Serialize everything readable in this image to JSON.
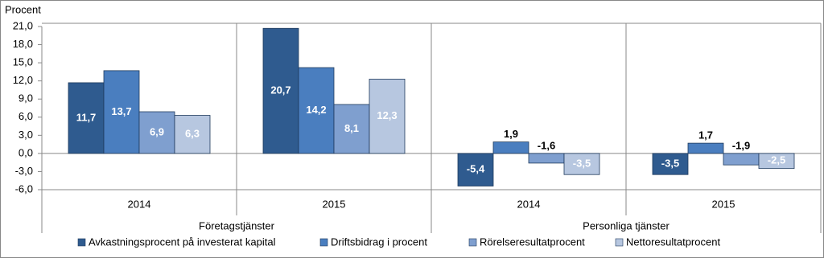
{
  "chart_data": {
    "type": "bar",
    "y_label": "Procent",
    "groups": [
      {
        "name": "Företagstjänster",
        "categories": [
          "2014",
          "2015"
        ]
      },
      {
        "name": "Personliga tjänster",
        "categories": [
          "2014",
          "2015"
        ]
      }
    ],
    "series": [
      {
        "name": "Avkastningsprocent på investerat kapital",
        "color": "#2f5b8f",
        "values": [
          11.7,
          20.7,
          -5.4,
          -3.5
        ],
        "value_labels": [
          "11,7",
          "20,7",
          "-5,4",
          "-3,5"
        ]
      },
      {
        "name": "Driftsbidrag i procent",
        "color": "#4a7ebf",
        "values": [
          13.7,
          14.2,
          1.9,
          1.7
        ],
        "value_labels": [
          "13,7",
          "14,2",
          "1,9",
          "1,7"
        ]
      },
      {
        "name": "Rörelseresultatprocent",
        "color": "#7f9fcf",
        "values": [
          6.9,
          8.1,
          -1.6,
          -1.9
        ],
        "value_labels": [
          "6,9",
          "8,1",
          "-1,6",
          "-1,9"
        ]
      },
      {
        "name": "Nettoresultatprocent",
        "color": "#b7c7e0",
        "values": [
          6.3,
          12.3,
          -3.5,
          -2.5
        ],
        "value_labels": [
          "6,3",
          "12,3",
          "-3,5",
          "-2,5"
        ]
      }
    ],
    "ylim": [
      -6,
      21
    ],
    "yticks": [
      {
        "value": -6,
        "label": "-6,0"
      },
      {
        "value": -3,
        "label": "-3,0"
      },
      {
        "value": 0,
        "label": "0,0"
      },
      {
        "value": 3,
        "label": "3,0"
      },
      {
        "value": 6,
        "label": "6,0"
      },
      {
        "value": 9,
        "label": "9,0"
      },
      {
        "value": 12,
        "label": "12,0"
      },
      {
        "value": 15,
        "label": "15,0"
      },
      {
        "value": 18,
        "label": "18,0"
      },
      {
        "value": 21,
        "label": "21,0"
      }
    ],
    "grid": false,
    "legend": "bottom"
  }
}
